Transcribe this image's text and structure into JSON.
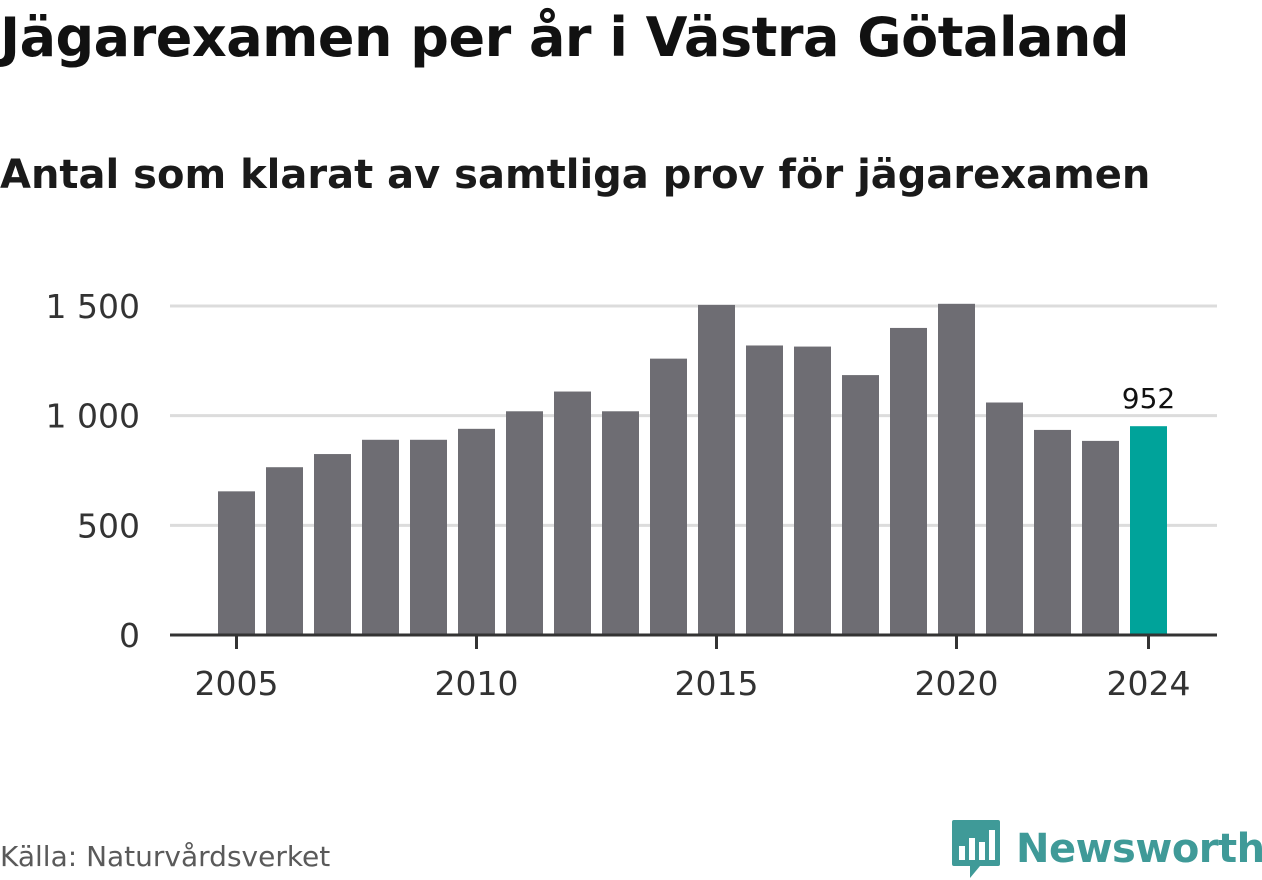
{
  "header": {
    "title": "Jägarexamen per år i Västra Götaland",
    "subtitle": "Antal som klarat av samtliga prov för jägarexamen"
  },
  "footer": {
    "source": "Källa: Naturvårdsverket",
    "brand": "Newsworthy",
    "brand_icon": "bar-chart-speech-bubble-icon"
  },
  "colors": {
    "bar": "#6e6d73",
    "highlight": "#00a39a",
    "gridline": "#dcdcdc",
    "axis": "#333333",
    "brand": "#3f9a98"
  },
  "chart_data": {
    "type": "bar",
    "title": "Jägarexamen per år i Västra Götaland",
    "subtitle": "Antal som klarat av samtliga prov för jägarexamen",
    "categories": [
      2005,
      2006,
      2007,
      2008,
      2009,
      2010,
      2011,
      2012,
      2013,
      2014,
      2015,
      2016,
      2017,
      2018,
      2019,
      2020,
      2021,
      2022,
      2023,
      2024
    ],
    "values": [
      655,
      765,
      825,
      890,
      890,
      940,
      1020,
      1110,
      1020,
      1260,
      1505,
      1320,
      1315,
      1185,
      1400,
      1510,
      1060,
      935,
      885,
      952
    ],
    "highlight": {
      "category": 2024,
      "label": "952"
    },
    "xticks": [
      "2005",
      "2010",
      "2015",
      "2020",
      "2024"
    ],
    "yticks": [
      "0",
      "500",
      "1 000",
      "1 500"
    ],
    "ytick_values": [
      0,
      500,
      1000,
      1500
    ],
    "ylim": [
      0,
      1500
    ],
    "xlabel": "",
    "ylabel": "",
    "grid": true
  }
}
